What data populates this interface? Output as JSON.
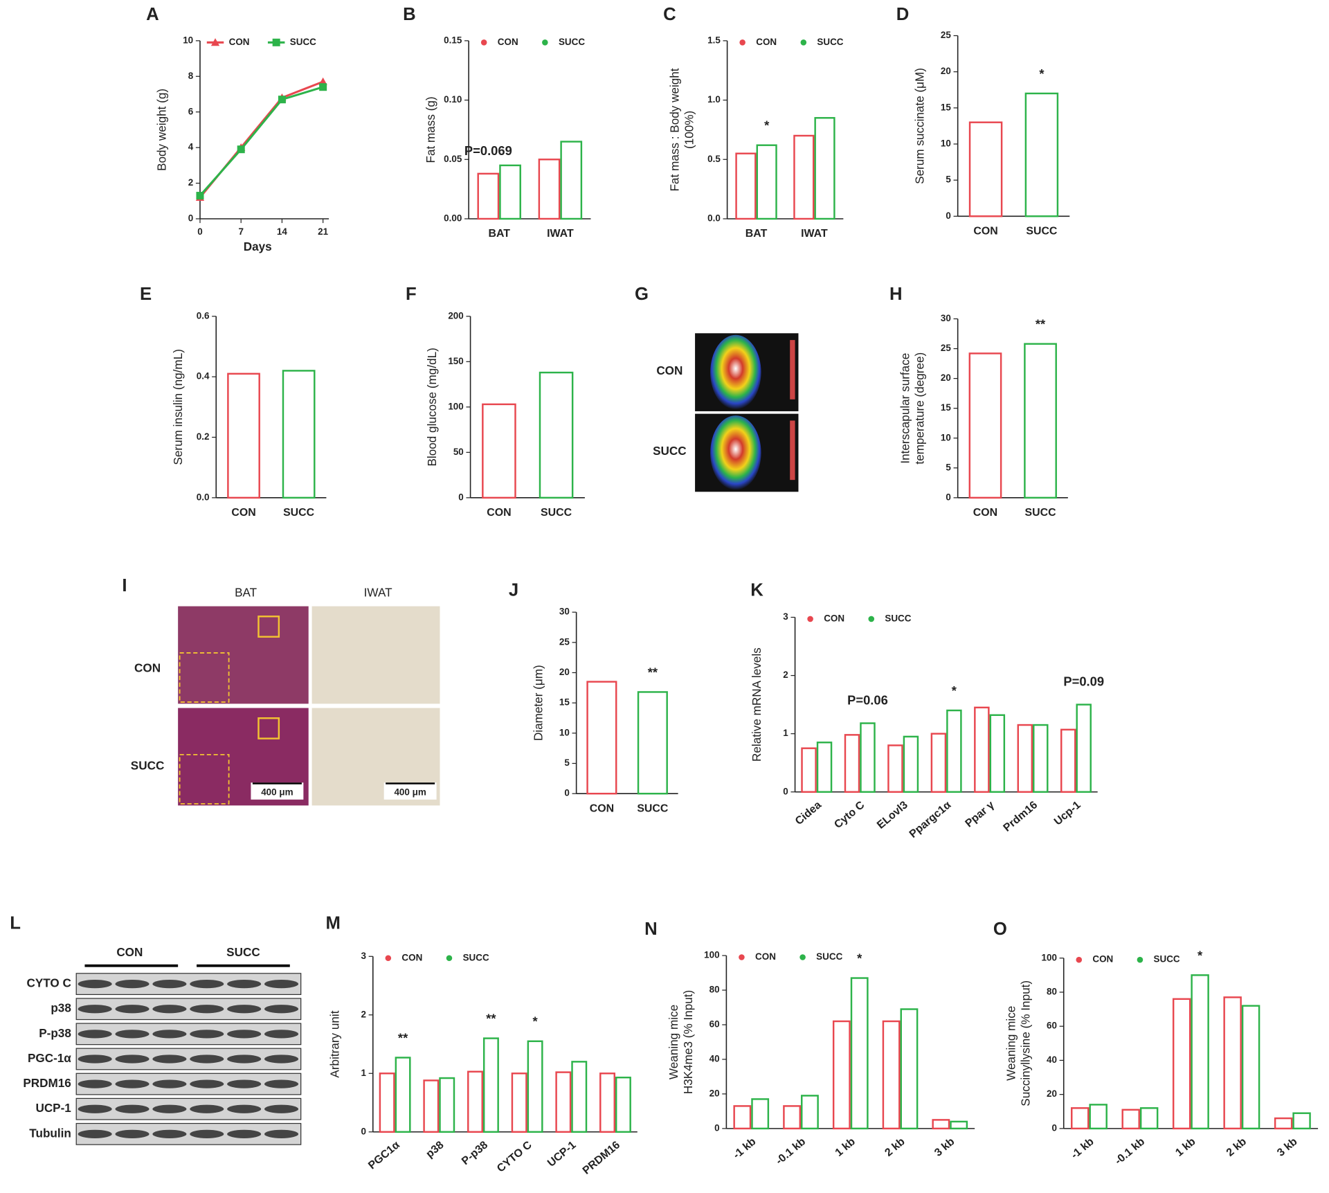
{
  "chart_data": [
    {
      "type": "line",
      "panel": "A",
      "ylabel": [
        "Body weight (g)"
      ],
      "xlabel": "Days",
      "x": [
        0,
        7,
        14,
        21
      ],
      "xlim": [
        0,
        22
      ],
      "xticks": [
        0,
        7,
        14,
        21
      ],
      "ylim": [
        0,
        10
      ],
      "yticks": [
        0,
        2,
        4,
        6,
        8,
        10
      ],
      "legend": "top",
      "series": [
        {
          "name": "CON",
          "color": "#e8474f",
          "marker": "triangle",
          "values": [
            1.2,
            4.0,
            6.8,
            7.7
          ]
        },
        {
          "name": "SUCC",
          "color": "#2db34a",
          "marker": "square",
          "values": [
            1.3,
            3.9,
            6.7,
            7.4
          ]
        }
      ]
    },
    {
      "type": "bar",
      "panel": "B",
      "ylabel": [
        "Fat mass (g)"
      ],
      "categories": [
        "BAT",
        "IWAT"
      ],
      "ylim": [
        0,
        0.15
      ],
      "yticks": [
        {
          "value": 0,
          "label": "0.00"
        },
        {
          "value": 0.05,
          "label": "0.05"
        },
        {
          "value": 0.1,
          "label": "0.10"
        },
        {
          "value": 0.15,
          "label": "0.15"
        }
      ],
      "legend": "top",
      "series": [
        {
          "name": "CON",
          "color": "#e8474f",
          "values": [
            0.038,
            0.05
          ],
          "annotations": [
            "P=0.069",
            null
          ]
        },
        {
          "name": "SUCC",
          "color": "#2db34a",
          "values": [
            0.045,
            0.065
          ]
        }
      ]
    },
    {
      "type": "bar",
      "panel": "C",
      "ylabel": [
        "Fat mass : Body weight",
        "(100%)"
      ],
      "categories": [
        "BAT",
        "IWAT"
      ],
      "ylim": [
        0,
        1.5
      ],
      "yticks": [
        {
          "value": 0,
          "label": "0.0"
        },
        0.5,
        {
          "value": 1,
          "label": "1.0"
        },
        1.5
      ],
      "legend": "top",
      "series": [
        {
          "name": "CON",
          "color": "#e8474f",
          "values": [
            0.55,
            0.7
          ]
        },
        {
          "name": "SUCC",
          "color": "#2db34a",
          "values": [
            0.62,
            0.85
          ],
          "annotations": [
            "*",
            null
          ]
        }
      ]
    },
    {
      "type": "bar",
      "panel": "D",
      "ylabel": [
        "Serum succinate (μM)"
      ],
      "categories": [
        "CON",
        "SUCC"
      ],
      "values": [
        13,
        17
      ],
      "colors": [
        "#e8474f",
        "#2db34a"
      ],
      "annotations": [
        null,
        "*"
      ],
      "ylim": [
        0,
        25
      ],
      "yticks": [
        0,
        5,
        10,
        15,
        20,
        25
      ]
    },
    {
      "type": "bar",
      "panel": "E",
      "ylabel": [
        "Serum insulin (ng/mL)"
      ],
      "categories": [
        "CON",
        "SUCC"
      ],
      "values": [
        0.41,
        0.42
      ],
      "colors": [
        "#e8474f",
        "#2db34a"
      ],
      "ylim": [
        0,
        0.6
      ],
      "yticks": [
        {
          "value": 0,
          "label": "0.0"
        },
        0.2,
        0.4,
        0.6
      ]
    },
    {
      "type": "bar",
      "panel": "F",
      "ylabel": [
        "Blood glucose (mg/dL)"
      ],
      "categories": [
        "CON",
        "SUCC"
      ],
      "values": [
        103,
        138
      ],
      "colors": [
        "#e8474f",
        "#2db34a"
      ],
      "ylim": [
        0,
        200
      ],
      "yticks": [
        0,
        50,
        100,
        150,
        200
      ]
    },
    {
      "type": "bar",
      "panel": "H",
      "ylabel": [
        "Interscapular surface",
        "temperature (degree)"
      ],
      "categories": [
        "CON",
        "SUCC"
      ],
      "values": [
        24.2,
        25.8
      ],
      "colors": [
        "#e8474f",
        "#2db34a"
      ],
      "annotations": [
        null,
        "**"
      ],
      "ylim": [
        0,
        30
      ],
      "yticks": [
        0,
        5,
        10,
        15,
        20,
        25,
        30
      ]
    },
    {
      "type": "bar",
      "panel": "J",
      "ylabel": [
        "Diameter (μm)"
      ],
      "categories": [
        "CON",
        "SUCC"
      ],
      "values": [
        18.5,
        16.8
      ],
      "colors": [
        "#e8474f",
        "#2db34a"
      ],
      "annotations": [
        null,
        "**"
      ],
      "ylim": [
        0,
        30
      ],
      "yticks": [
        0,
        5,
        10,
        15,
        20,
        25,
        30
      ]
    },
    {
      "type": "bar",
      "panel": "K",
      "ylabel": [
        "Relative mRNA levels"
      ],
      "rotate_xlabels": true,
      "categories": [
        "Cidea",
        "Cyto C",
        "ELovl3",
        "Ppargc1α",
        "Ppar γ",
        "Prdm16",
        "Ucp-1"
      ],
      "ylim": [
        0,
        3
      ],
      "yticks": [
        0,
        1,
        2,
        3
      ],
      "legend": "top",
      "series": [
        {
          "name": "CON",
          "color": "#e8474f",
          "values": [
            0.75,
            0.98,
            0.8,
            1.0,
            1.45,
            1.15,
            1.07
          ]
        },
        {
          "name": "SUCC",
          "color": "#2db34a",
          "values": [
            0.85,
            1.18,
            0.95,
            1.4,
            1.32,
            1.15,
            1.5
          ],
          "annotations": [
            null,
            "P=0.06",
            null,
            "*",
            null,
            null,
            "P=0.09"
          ]
        }
      ]
    },
    {
      "type": "bar",
      "panel": "M",
      "ylabel": [
        "Arbitrary unit"
      ],
      "rotate_xlabels": true,
      "categories": [
        "PGC1α",
        "p38",
        "P-p38",
        "CYTO C",
        "UCP-1",
        "PRDM16"
      ],
      "ylim": [
        0,
        3
      ],
      "yticks": [
        0,
        1,
        2,
        3
      ],
      "legend": "top",
      "series": [
        {
          "name": "CON",
          "color": "#e8474f",
          "values": [
            1.0,
            0.88,
            1.03,
            1.0,
            1.02,
            1.0
          ]
        },
        {
          "name": "SUCC",
          "color": "#2db34a",
          "values": [
            1.27,
            0.92,
            1.6,
            1.55,
            1.2,
            0.93
          ],
          "annotations": [
            "**",
            null,
            "**",
            "*",
            null,
            null
          ]
        }
      ]
    },
    {
      "type": "bar",
      "panel": "N",
      "ylabel": [
        "Weaning mice",
        "H3K4me3 (% Input)"
      ],
      "rotate_xlabels": true,
      "categories": [
        "-1 kb",
        "-0.1 kb",
        "1 kb",
        "2 kb",
        "3 kb"
      ],
      "ylim": [
        0,
        100
      ],
      "yticks": [
        0,
        20,
        40,
        60,
        80,
        100
      ],
      "legend": "top",
      "series": [
        {
          "name": "CON",
          "color": "#e8474f",
          "values": [
            13,
            13,
            62,
            62,
            5
          ]
        },
        {
          "name": "SUCC",
          "color": "#2db34a",
          "values": [
            17,
            19,
            87,
            69,
            4
          ],
          "annotations": [
            null,
            null,
            "*",
            null,
            null
          ]
        }
      ]
    },
    {
      "type": "bar",
      "panel": "O",
      "ylabel": [
        "Weaning mice",
        "Succinyllysine (% Input)"
      ],
      "rotate_xlabels": true,
      "categories": [
        "-1 kb",
        "-0.1 kb",
        "1 kb",
        "2 kb",
        "3 kb"
      ],
      "ylim": [
        0,
        100
      ],
      "yticks": [
        0,
        20,
        40,
        60,
        80,
        100
      ],
      "legend": "top",
      "series": [
        {
          "name": "CON",
          "color": "#e8474f",
          "values": [
            12,
            11,
            76,
            77,
            6
          ]
        },
        {
          "name": "SUCC",
          "color": "#2db34a",
          "values": [
            14,
            12,
            90,
            72,
            9
          ],
          "annotations": [
            null,
            null,
            "*",
            null,
            null
          ]
        }
      ]
    }
  ],
  "images": [
    {
      "panel": "G",
      "row_labels": [
        "CON",
        "SUCC"
      ]
    },
    {
      "panel": "I",
      "column_labels": [
        "BAT",
        "IWAT"
      ],
      "row_labels": [
        "CON",
        "SUCC"
      ],
      "scale_bar": "400 μm"
    },
    {
      "panel": "L",
      "group_labels": [
        "CON",
        "SUCC"
      ],
      "row_labels": [
        "CYTO C",
        "p38",
        "P-p38",
        "PGC-1α",
        "PRDM16",
        "UCP-1",
        "Tubulin"
      ]
    }
  ]
}
